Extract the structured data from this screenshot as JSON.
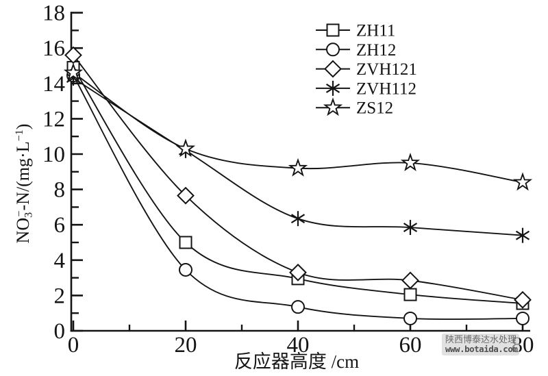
{
  "chart_data": {
    "type": "line",
    "title": "",
    "xlabel": "反应器高度 /cm",
    "ylabel": "NO₃⁻-N/(mg·L⁻¹)",
    "ylabel_parts": [
      {
        "t": "NO"
      },
      {
        "t": "3",
        "shift": "sub"
      },
      {
        "t": "−",
        "shift": "sup",
        "overlap": true
      },
      {
        "t": "-N/(mg·L"
      },
      {
        "t": "−1",
        "shift": "sup"
      },
      {
        "t": ")"
      }
    ],
    "x": [
      0,
      20,
      40,
      60,
      80
    ],
    "xlim": [
      0,
      80
    ],
    "ylim": [
      0,
      18
    ],
    "x_ticks_major": [
      0,
      20,
      40,
      60,
      80
    ],
    "x_ticks_minor": [
      10,
      30,
      50,
      70
    ],
    "y_ticks_major": [
      18,
      16,
      14,
      12,
      10,
      8,
      6,
      4,
      2,
      0
    ],
    "y_ticks_minor": [
      17,
      15,
      13,
      11,
      9,
      7,
      5,
      3,
      1
    ],
    "grid": false,
    "legend_position": "top-right-inside",
    "line_color": "#141414",
    "marker_fill": "#ffffff",
    "series": [
      {
        "name": "ZH11",
        "marker": "square",
        "values": [
          14.9,
          5.0,
          2.95,
          2.05,
          1.55
        ]
      },
      {
        "name": "ZH12",
        "marker": "circle",
        "values": [
          14.45,
          3.45,
          1.35,
          0.7,
          0.7
        ]
      },
      {
        "name": "ZVH121",
        "marker": "diamond",
        "values": [
          15.6,
          7.65,
          3.3,
          2.85,
          1.75
        ]
      },
      {
        "name": "ZVH112",
        "marker": "asterisk",
        "values": [
          14.3,
          10.2,
          6.35,
          5.85,
          5.4
        ]
      },
      {
        "name": "ZS12",
        "marker": "star",
        "values": [
          14.6,
          10.3,
          9.2,
          9.5,
          8.4
        ]
      }
    ]
  },
  "watermark": {
    "line1": "陕西博泰达水处理",
    "line2": "www.botaida.com"
  }
}
